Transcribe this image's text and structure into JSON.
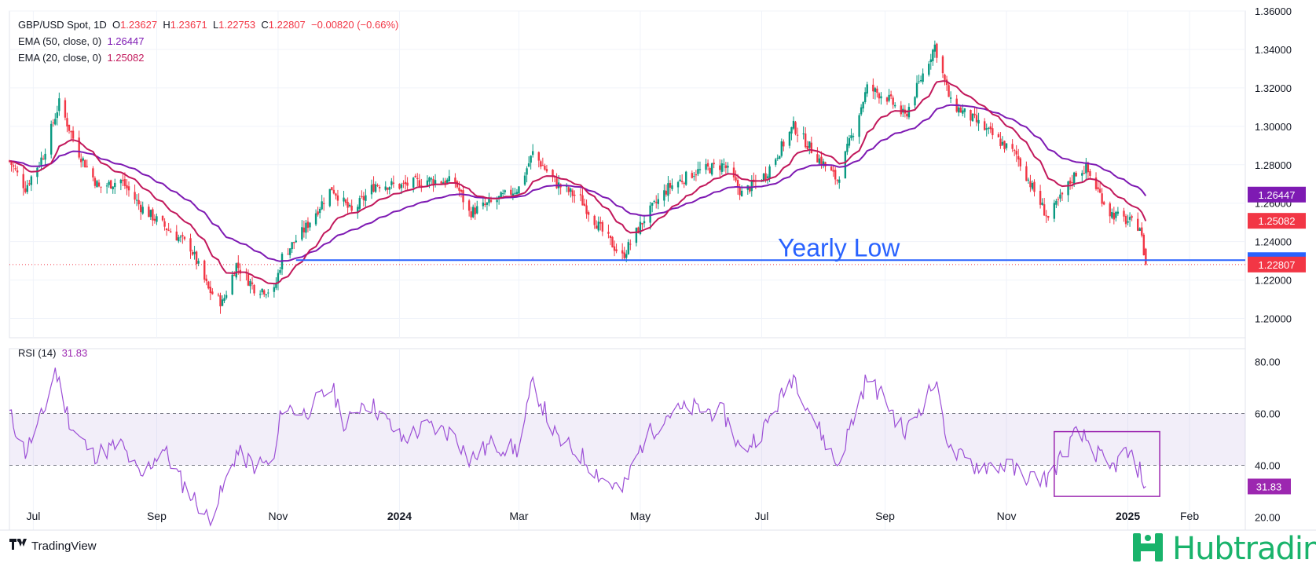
{
  "header": {
    "symbol": "GBP/USD Spot, 1D",
    "open_label": "O",
    "open": "1.23627",
    "high_label": "H",
    "high": "1.23671",
    "low_label": "L",
    "low": "1.22753",
    "close_label": "C",
    "close": "1.22807",
    "change": "−0.00820 (−0.66%)",
    "ema50_label": "EMA (50, close, 0)",
    "ema50_value": "1.26447",
    "ema20_label": "EMA (20, close, 0)",
    "ema20_value": "1.25082",
    "rsi_label": "RSI (14)",
    "rsi_value": "31.83"
  },
  "colors": {
    "up": "#089981",
    "down": "#f23645",
    "ema50": "#7e1ab3",
    "ema20": "#c2185b",
    "rsi": "#9c4fd6",
    "rsi_band": "#7e57c2",
    "yearly_low_line": "#2962ff",
    "annotation_box": "#9c27b0"
  },
  "chart_data": [
    {
      "type": "candlestick",
      "title": "GBP/USD Spot, 1D",
      "x_ticks": [
        "Jul",
        "Sep",
        "Nov",
        "2024",
        "Mar",
        "May",
        "Jul",
        "Sep",
        "Nov",
        "2025",
        "Feb"
      ],
      "y_ticks": [
        "1.20000",
        "1.22000",
        "1.24000",
        "1.26000",
        "1.28000",
        "1.30000",
        "1.32000",
        "1.34000",
        "1.36000"
      ],
      "ylim": [
        1.19,
        1.36
      ],
      "price_tags": {
        "ema50": "1.26447",
        "ema20": "1.25082",
        "yearly_low": "1.23035",
        "last": "1.22807"
      },
      "annotation": "Yearly Low",
      "yearly_low": 1.23035,
      "close_waypoints": [
        [
          "2023-06-19",
          1.282
        ],
        [
          "2023-06-27",
          1.268
        ],
        [
          "2023-07-06",
          1.285
        ],
        [
          "2023-07-14",
          1.312
        ],
        [
          "2023-07-24",
          1.286
        ],
        [
          "2023-08-03",
          1.268
        ],
        [
          "2023-08-14",
          1.272
        ],
        [
          "2023-08-24",
          1.258
        ],
        [
          "2023-09-06",
          1.247
        ],
        [
          "2023-09-18",
          1.237
        ],
        [
          "2023-09-27",
          1.215
        ],
        [
          "2023-10-04",
          1.208
        ],
        [
          "2023-10-11",
          1.228
        ],
        [
          "2023-10-20",
          1.216
        ],
        [
          "2023-10-30",
          1.214
        ],
        [
          "2023-11-03",
          1.232
        ],
        [
          "2023-11-14",
          1.246
        ],
        [
          "2023-11-28",
          1.268
        ],
        [
          "2023-12-08",
          1.255
        ],
        [
          "2023-12-20",
          1.27
        ],
        [
          "2024-01-02",
          1.269
        ],
        [
          "2024-01-15",
          1.272
        ],
        [
          "2024-01-29",
          1.271
        ],
        [
          "2024-02-05",
          1.255
        ],
        [
          "2024-02-16",
          1.26
        ],
        [
          "2024-03-01",
          1.268
        ],
        [
          "2024-03-08",
          1.286
        ],
        [
          "2024-03-20",
          1.27
        ],
        [
          "2024-04-01",
          1.262
        ],
        [
          "2024-04-12",
          1.245
        ],
        [
          "2024-04-22",
          1.232
        ],
        [
          "2024-05-03",
          1.252
        ],
        [
          "2024-05-15",
          1.268
        ],
        [
          "2024-05-28",
          1.276
        ],
        [
          "2024-06-12",
          1.28
        ],
        [
          "2024-06-21",
          1.265
        ],
        [
          "2024-07-03",
          1.275
        ],
        [
          "2024-07-17",
          1.3
        ],
        [
          "2024-07-29",
          1.284
        ],
        [
          "2024-08-08",
          1.272
        ],
        [
          "2024-08-23",
          1.32
        ],
        [
          "2024-09-02",
          1.315
        ],
        [
          "2024-09-11",
          1.305
        ],
        [
          "2024-09-26",
          1.342
        ],
        [
          "2024-10-04",
          1.312
        ],
        [
          "2024-10-16",
          1.303
        ],
        [
          "2024-10-31",
          1.29
        ],
        [
          "2024-11-06",
          1.285
        ],
        [
          "2024-11-14",
          1.268
        ],
        [
          "2024-11-22",
          1.252
        ],
        [
          "2024-12-06",
          1.276
        ],
        [
          "2024-12-11",
          1.278
        ],
        [
          "2024-12-23",
          1.255
        ],
        [
          "2024-12-31",
          1.251
        ],
        [
          "2025-01-07",
          1.248
        ],
        [
          "2025-01-10",
          1.228
        ]
      ]
    },
    {
      "type": "line",
      "title": "RSI (14)",
      "y_ticks": [
        "20.00",
        "40.00",
        "60.00",
        "80.00"
      ],
      "ylim": [
        15,
        85
      ],
      "band": [
        40,
        60
      ],
      "last_value": "31.83",
      "waypoints": [
        [
          "2023-06-19",
          60
        ],
        [
          "2023-06-27",
          45
        ],
        [
          "2023-07-06",
          60
        ],
        [
          "2023-07-12",
          77
        ],
        [
          "2023-07-20",
          55
        ],
        [
          "2023-07-31",
          44
        ],
        [
          "2023-08-14",
          48
        ],
        [
          "2023-08-24",
          35
        ],
        [
          "2023-09-04",
          47
        ],
        [
          "2023-09-14",
          33
        ],
        [
          "2023-09-22",
          25
        ],
        [
          "2023-09-27",
          19
        ],
        [
          "2023-10-04",
          30
        ],
        [
          "2023-10-11",
          45
        ],
        [
          "2023-10-20",
          40
        ],
        [
          "2023-10-30",
          41
        ],
        [
          "2023-11-03",
          63
        ],
        [
          "2023-11-14",
          60
        ],
        [
          "2023-11-28",
          70
        ],
        [
          "2023-12-05",
          55
        ],
        [
          "2023-12-14",
          65
        ],
        [
          "2023-12-20",
          62
        ],
        [
          "2024-01-02",
          50
        ],
        [
          "2024-01-15",
          55
        ],
        [
          "2024-01-29",
          52
        ],
        [
          "2024-02-05",
          42
        ],
        [
          "2024-02-16",
          48
        ],
        [
          "2024-03-01",
          46
        ],
        [
          "2024-03-08",
          72
        ],
        [
          "2024-03-20",
          50
        ],
        [
          "2024-04-01",
          44
        ],
        [
          "2024-04-12",
          35
        ],
        [
          "2024-04-22",
          30
        ],
        [
          "2024-05-03",
          50
        ],
        [
          "2024-05-15",
          60
        ],
        [
          "2024-05-28",
          62
        ],
        [
          "2024-06-12",
          60
        ],
        [
          "2024-06-21",
          45
        ],
        [
          "2024-07-03",
          55
        ],
        [
          "2024-07-17",
          75
        ],
        [
          "2024-07-29",
          55
        ],
        [
          "2024-08-08",
          40
        ],
        [
          "2024-08-23",
          74
        ],
        [
          "2024-09-02",
          64
        ],
        [
          "2024-09-11",
          52
        ],
        [
          "2024-09-26",
          72
        ],
        [
          "2024-10-04",
          45
        ],
        [
          "2024-10-16",
          40
        ],
        [
          "2024-10-31",
          40
        ],
        [
          "2024-11-14",
          35
        ],
        [
          "2024-11-22",
          35
        ],
        [
          "2024-12-06",
          52
        ],
        [
          "2024-12-11",
          50
        ],
        [
          "2024-12-23",
          38
        ],
        [
          "2024-12-31",
          45
        ],
        [
          "2025-01-07",
          38
        ],
        [
          "2025-01-10",
          31.83
        ]
      ],
      "annotation_box": {
        "from": "2024-11-25",
        "to": "2025-01-17",
        "y_range": [
          28,
          53
        ]
      }
    }
  ],
  "brands": {
    "tradingview": "TradingView",
    "tradingview_icon": "tradingview-logo-icon",
    "hubtrading": "Hubtrading",
    "hubtrading_icon": "hubtrading-logo-icon"
  }
}
